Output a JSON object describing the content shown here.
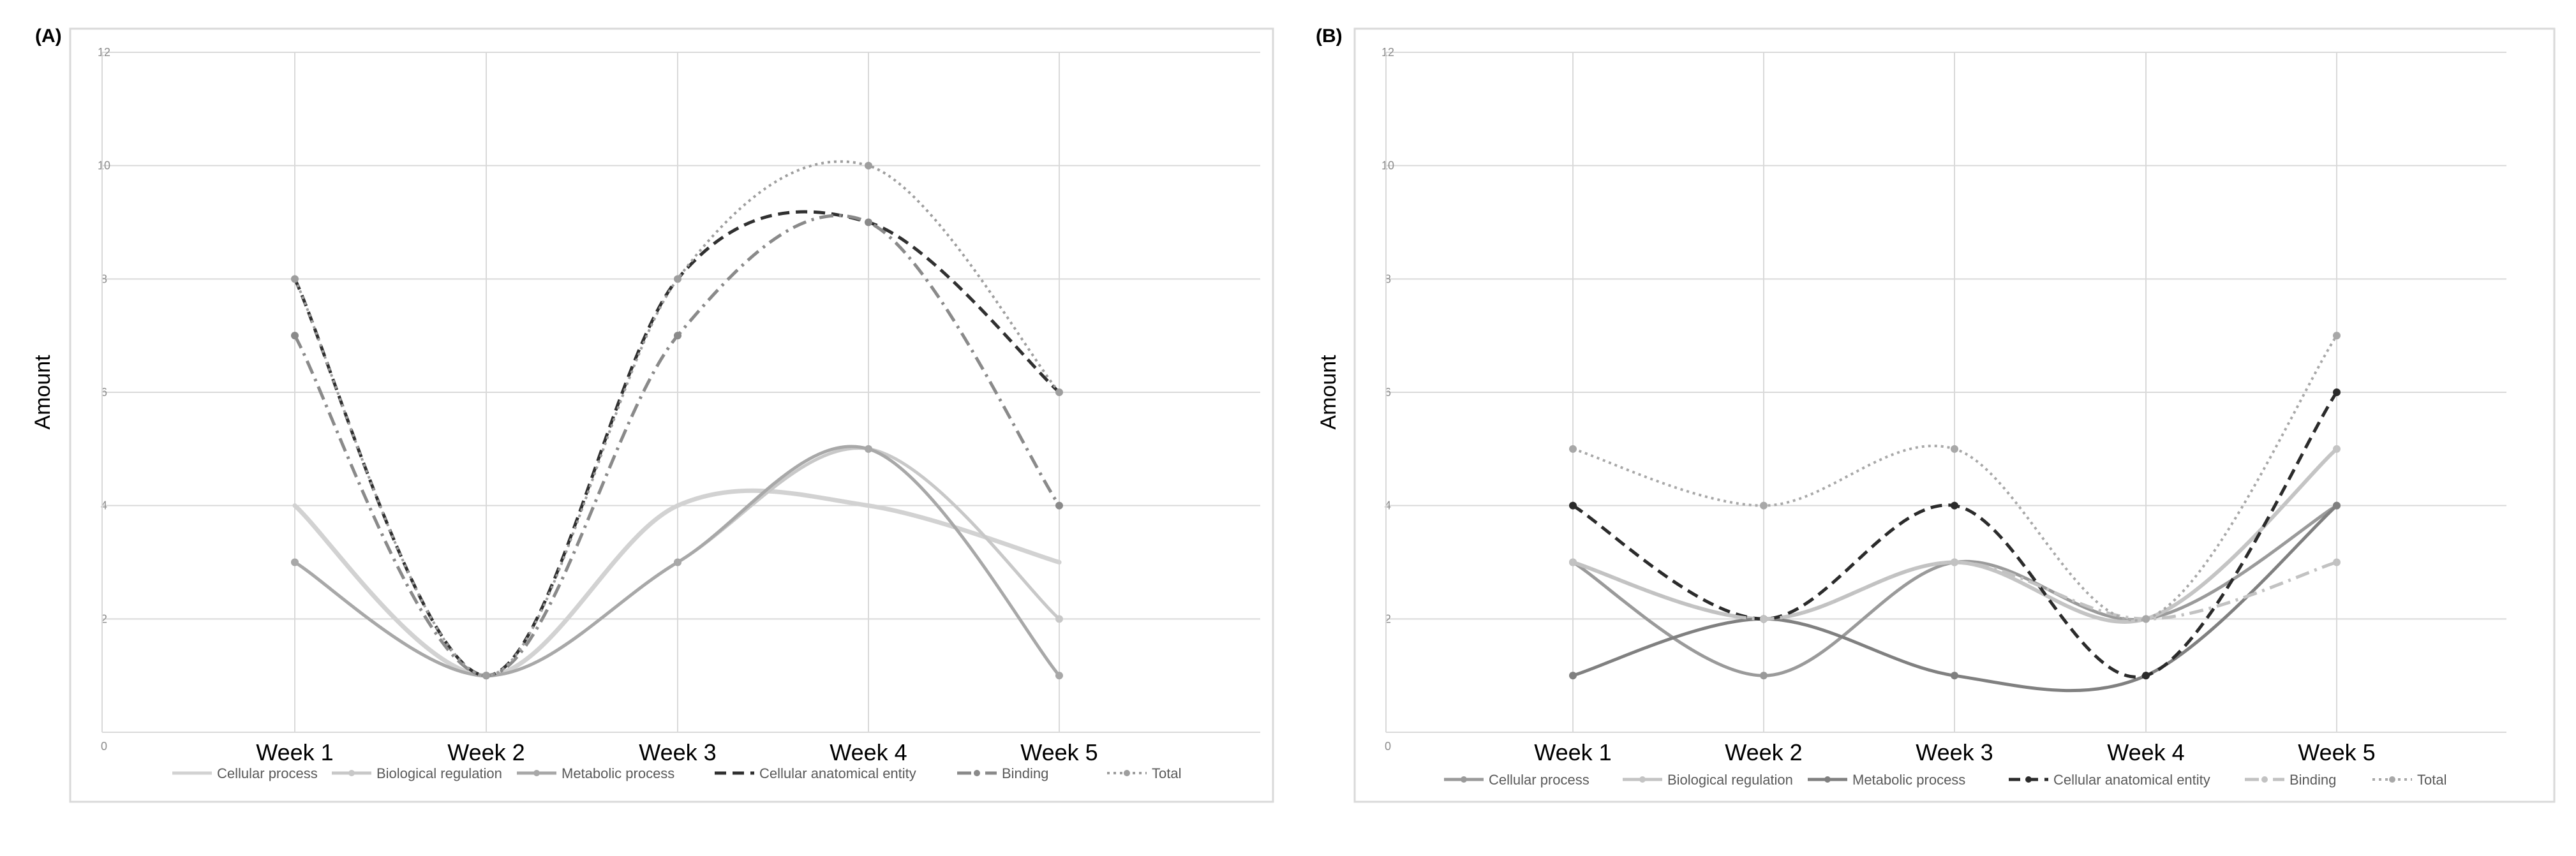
{
  "colors": {
    "gridline": "#d9d9d9",
    "frame": "#d9d9d9",
    "background": "#ffffff"
  },
  "chart_data": [
    {
      "panel_label": "(A)",
      "type": "line",
      "smooth": true,
      "ylabel": "Amount",
      "xlabel": "",
      "ylim": [
        0,
        12
      ],
      "yticks": [
        "0",
        "2",
        "4",
        "6",
        "8",
        "10",
        "12"
      ],
      "categories": [
        "Week 1",
        "Week 2",
        "Week 3",
        "Week 4",
        "Week 5"
      ],
      "legend_position": "bottom",
      "grid": true,
      "series": [
        {
          "name": "Cellular process",
          "values": [
            4,
            1,
            4,
            4,
            3
          ],
          "color": "#d2d2d2",
          "dash": "solid",
          "width": 7,
          "marker": false
        },
        {
          "name": "Biological regulation",
          "values": [
            3,
            1,
            3,
            5,
            2
          ],
          "color": "#c8c8c8",
          "dash": "solid",
          "width": 5,
          "marker": true
        },
        {
          "name": "Metabolic process",
          "values": [
            3,
            1,
            3,
            5,
            1
          ],
          "color": "#a8a8a8",
          "dash": "solid",
          "width": 5,
          "marker": true
        },
        {
          "name": "Cellular anatomical entity",
          "values": [
            8,
            1,
            8,
            9,
            6
          ],
          "color": "#303030",
          "dash": "dash",
          "width": 5,
          "marker": false
        },
        {
          "name": "Binding",
          "values": [
            7,
            1,
            7,
            9,
            4
          ],
          "color": "#8a8a8a",
          "dash": "dashdot",
          "width": 5,
          "marker": true
        },
        {
          "name": "Total",
          "values": [
            8,
            1,
            8,
            10,
            6
          ],
          "color": "#9e9e9e",
          "dash": "dot",
          "width": 4,
          "marker": true
        }
      ]
    },
    {
      "panel_label": "(B)",
      "type": "line",
      "smooth": true,
      "ylabel": "Amount",
      "xlabel": "",
      "ylim": [
        0,
        12
      ],
      "yticks": [
        "0",
        "2",
        "4",
        "6",
        "8",
        "10",
        "12"
      ],
      "categories": [
        "Week 1",
        "Week 2",
        "Week 3",
        "Week 4",
        "Week 5"
      ],
      "legend_position": "bottom",
      "grid": true,
      "series": [
        {
          "name": "Cellular process",
          "values": [
            3,
            1,
            3,
            2,
            4
          ],
          "color": "#9a9a9a",
          "dash": "solid",
          "width": 5,
          "marker": true
        },
        {
          "name": "Biological regulation",
          "values": [
            3,
            2,
            3,
            2,
            5
          ],
          "color": "#c4c4c4",
          "dash": "solid",
          "width": 6,
          "marker": true
        },
        {
          "name": "Metabolic process",
          "values": [
            1,
            2,
            1,
            1,
            4
          ],
          "color": "#808080",
          "dash": "solid",
          "width": 5,
          "marker": true
        },
        {
          "name": "Cellular anatomical entity",
          "values": [
            4,
            2,
            4,
            1,
            6
          ],
          "color": "#2b2b2b",
          "dash": "dash",
          "width": 5,
          "marker": true
        },
        {
          "name": "Binding",
          "values": [
            3,
            2,
            3,
            2,
            3
          ],
          "color": "#c2c2c2",
          "dash": "dashdot",
          "width": 5,
          "marker": true
        },
        {
          "name": "Total",
          "values": [
            5,
            4,
            5,
            2,
            7
          ],
          "color": "#a8a8a8",
          "dash": "dot",
          "width": 4,
          "marker": true
        }
      ]
    }
  ]
}
